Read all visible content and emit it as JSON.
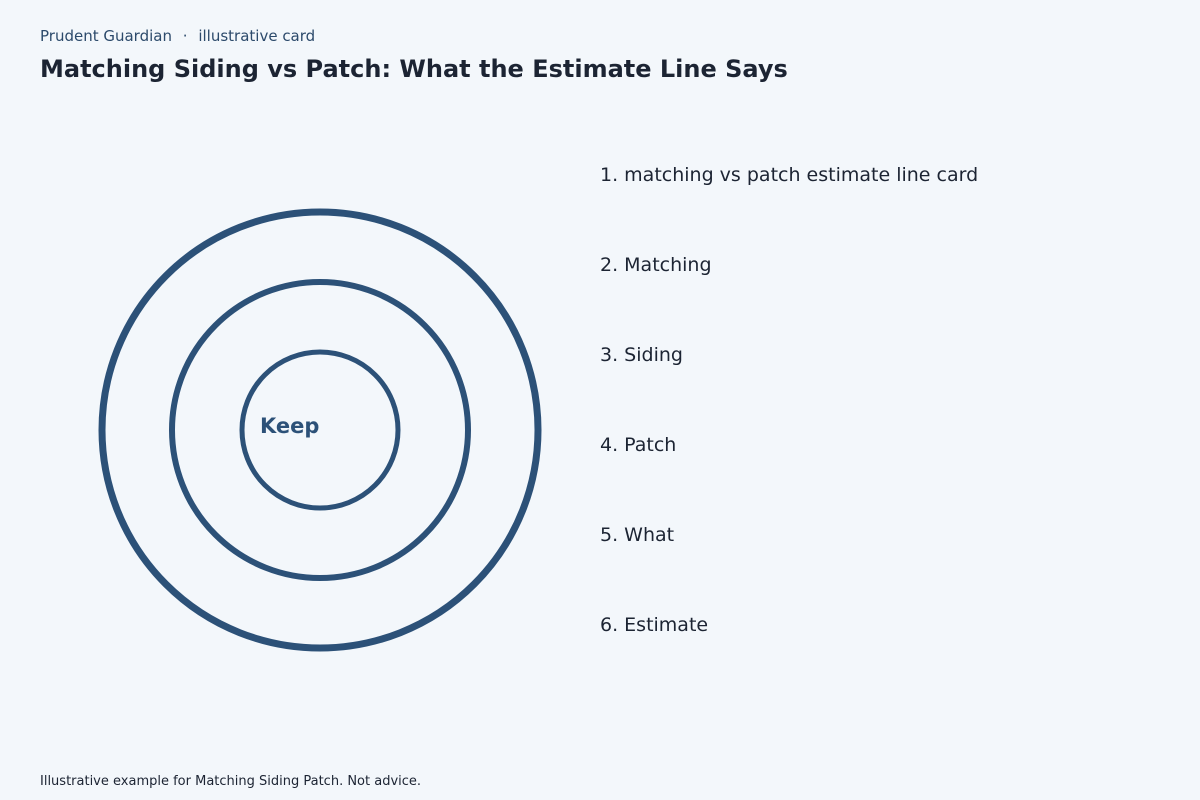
{
  "header": {
    "brand": "Prudent Guardian",
    "separator": "·",
    "tag": "illustrative card",
    "title": "Matching Siding vs Patch: What the Estimate Line Says"
  },
  "diagram": {
    "center_label": "Keep"
  },
  "list": [
    "1. matching vs patch estimate line card",
    "2. Matching",
    "3. Siding",
    "4. Patch",
    "5. What",
    "6. Estimate"
  ],
  "footer": "Illustrative example for Matching Siding Patch. Not advice."
}
